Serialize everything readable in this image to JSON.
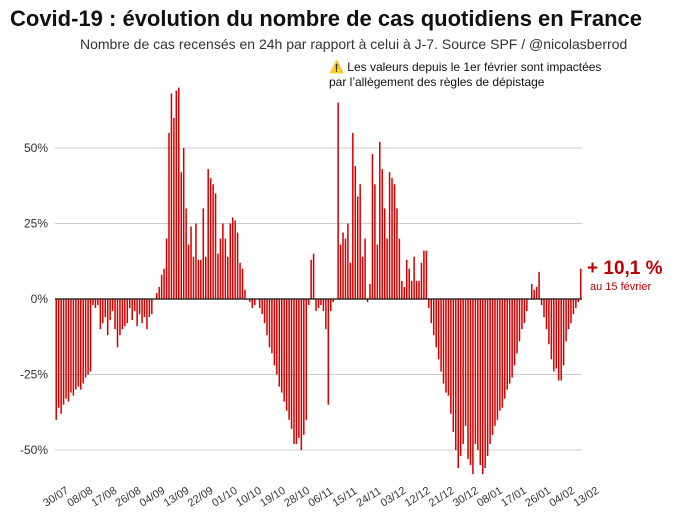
{
  "header": {
    "title": "Covid-19 : évolution du nombre de cas quotidiens en France",
    "subtitle": "Nombre de cas recensés en 24h par rapport à celui à J-7. Source SPF / @nicolasberrod"
  },
  "annotation": {
    "icon": "warning-icon",
    "line1": "Les valeurs depuis le 1er février sont impactées",
    "line2": "par l’allègement des règles de dépistage"
  },
  "callout": {
    "value": "+ 10,1 %",
    "date": "au 15 février"
  },
  "colors": {
    "bar": "#d40000",
    "grid": "#cccccc",
    "callout": "#c00000"
  },
  "chart_data": {
    "type": "bar",
    "title": "Covid-19 : évolution du nombre de cas quotidiens en France",
    "xlabel": "",
    "ylabel": "",
    "ylim": [
      -60,
      70
    ],
    "yticks": [
      {
        "value": -50,
        "label": "-50%"
      },
      {
        "value": -25,
        "label": "-25%"
      },
      {
        "value": 0,
        "label": "0%"
      },
      {
        "value": 25,
        "label": "25%"
      },
      {
        "value": 50,
        "label": "50%"
      }
    ],
    "xticks": [
      "30/07",
      "08/08",
      "17/08",
      "26/08",
      "04/09",
      "13/09",
      "22/09",
      "01/10",
      "10/10",
      "19/10",
      "28/10",
      "06/11",
      "15/11",
      "24/11",
      "03/12",
      "12/12",
      "21/12",
      "30/12",
      "08/01",
      "17/01",
      "26/01",
      "04/02",
      "13/02"
    ],
    "first_date": "30/07",
    "last_date": "15/02",
    "values": [
      -40,
      -36,
      -38,
      -35,
      -33,
      -34,
      -31,
      -32,
      -30,
      -29,
      -30,
      -28,
      -26,
      -25,
      -24,
      -2,
      -3,
      -2,
      -10,
      -8,
      -6,
      -12,
      -7,
      -4,
      -10,
      -16,
      -12,
      -10,
      -9,
      -8,
      -3,
      -7,
      -4,
      -9,
      -5,
      -8,
      -6,
      -10,
      -6,
      -5,
      0,
      2,
      4,
      8,
      10,
      20,
      55,
      68,
      60,
      69,
      70,
      42,
      50,
      30,
      18,
      24,
      14,
      25,
      13,
      13,
      30,
      14,
      43,
      40,
      38,
      35,
      15,
      20,
      25,
      20,
      14,
      25,
      27,
      26,
      22,
      12,
      10,
      3,
      0,
      -1,
      -3,
      -2,
      0,
      -3,
      -5,
      -8,
      -12,
      -16,
      -18,
      -22,
      -25,
      -29,
      -31,
      -34,
      -37,
      -40,
      -43,
      -48,
      -48,
      -46,
      -50,
      -45,
      -40,
      -2,
      13,
      15,
      -4,
      -3,
      -2,
      -4,
      -10,
      -35,
      -4,
      -1,
      0,
      65,
      18,
      22,
      20,
      25,
      12,
      55,
      44,
      34,
      38,
      14,
      20,
      -1,
      5,
      48,
      38,
      18,
      52,
      43,
      30,
      20,
      42,
      40,
      38,
      30,
      20,
      6,
      4,
      13,
      10,
      6,
      14,
      6,
      6,
      12,
      16,
      16,
      -3,
      -8,
      -12,
      -16,
      -20,
      -24,
      -28,
      -31,
      -32,
      -38,
      -44,
      -50,
      -56,
      -52,
      -48,
      -42,
      -53,
      -55,
      -58,
      -48,
      -50,
      -55,
      -58,
      -56,
      -52,
      -48,
      -45,
      -42,
      -40,
      -37,
      -36,
      -33,
      -30,
      -28,
      -26,
      -22,
      -18,
      -14,
      -10,
      -8,
      -4,
      0,
      5,
      3,
      4,
      9,
      -2,
      -6,
      -10,
      -15,
      -20,
      -24,
      -23,
      -27,
      -27,
      -22,
      -14,
      -10,
      -8,
      -5,
      -3,
      -1,
      10
    ]
  }
}
